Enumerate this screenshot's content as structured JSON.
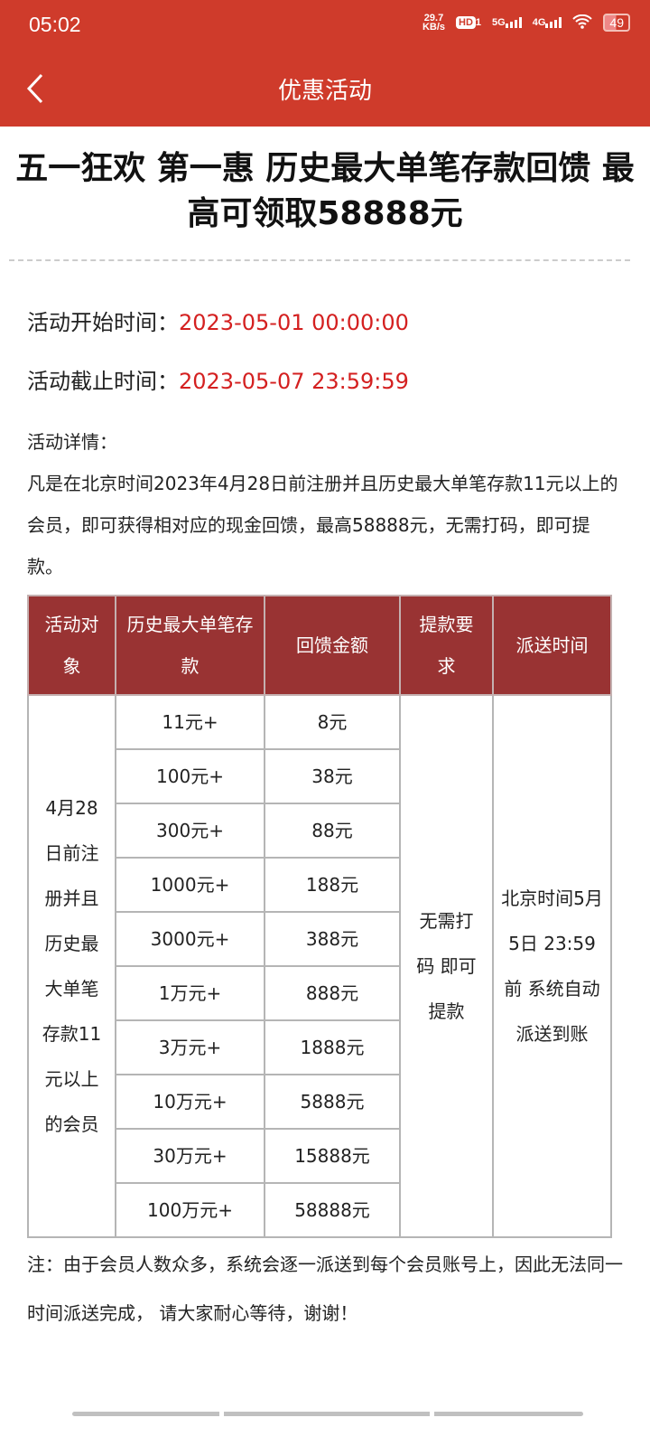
{
  "status": {
    "time": "05:02",
    "speed": "29.7",
    "speed_unit": "KB/s",
    "hd": "HD",
    "sim": "1",
    "net1": "5G",
    "net2": "4G",
    "battery": "49"
  },
  "nav": {
    "title": "优惠活动"
  },
  "title": "五一狂欢 第一惠 历史最大单笔存款回馈 最高可领取58888元",
  "start": {
    "label": "活动开始时间：",
    "value": "2023-05-01 00:00:00"
  },
  "end": {
    "label": "活动截止时间：",
    "value": "2023-05-07 23:59:59"
  },
  "details_label": "活动详情：",
  "details": "凡是在北京时间2023年4月28日前注册并且历史最大单笔存款11元以上的会员，即可获得相对应的现金回馈，最高58888元，无需打码，即可提款。",
  "table": {
    "headers": [
      "活动对象",
      "历史最大单笔存款",
      "回馈金额",
      "提款要求",
      "派送时间"
    ],
    "target": "4月28日前注册并且历史最大单笔存款11元以上的会员",
    "requirement": "无需打码 即可提款",
    "dispatch": "北京时间5月5日 23:59前 系统自动 派送到账",
    "rows": [
      {
        "deposit": "11元+",
        "reward": "8元"
      },
      {
        "deposit": "100元+",
        "reward": "38元"
      },
      {
        "deposit": "300元+",
        "reward": "88元"
      },
      {
        "deposit": "1000元+",
        "reward": "188元"
      },
      {
        "deposit": "3000元+",
        "reward": "388元"
      },
      {
        "deposit": "1万元+",
        "reward": "888元"
      },
      {
        "deposit": "3万元+",
        "reward": "1888元"
      },
      {
        "deposit": "10万元+",
        "reward": "5888元"
      },
      {
        "deposit": "30万元+",
        "reward": "15888元"
      },
      {
        "deposit": "100万元+",
        "reward": "58888元"
      }
    ]
  },
  "note": "注：由于会员人数众多，系统会逐一派送到每个会员账号上，因此无法同一时间派送完成， 请大家耐心等待，谢谢！"
}
